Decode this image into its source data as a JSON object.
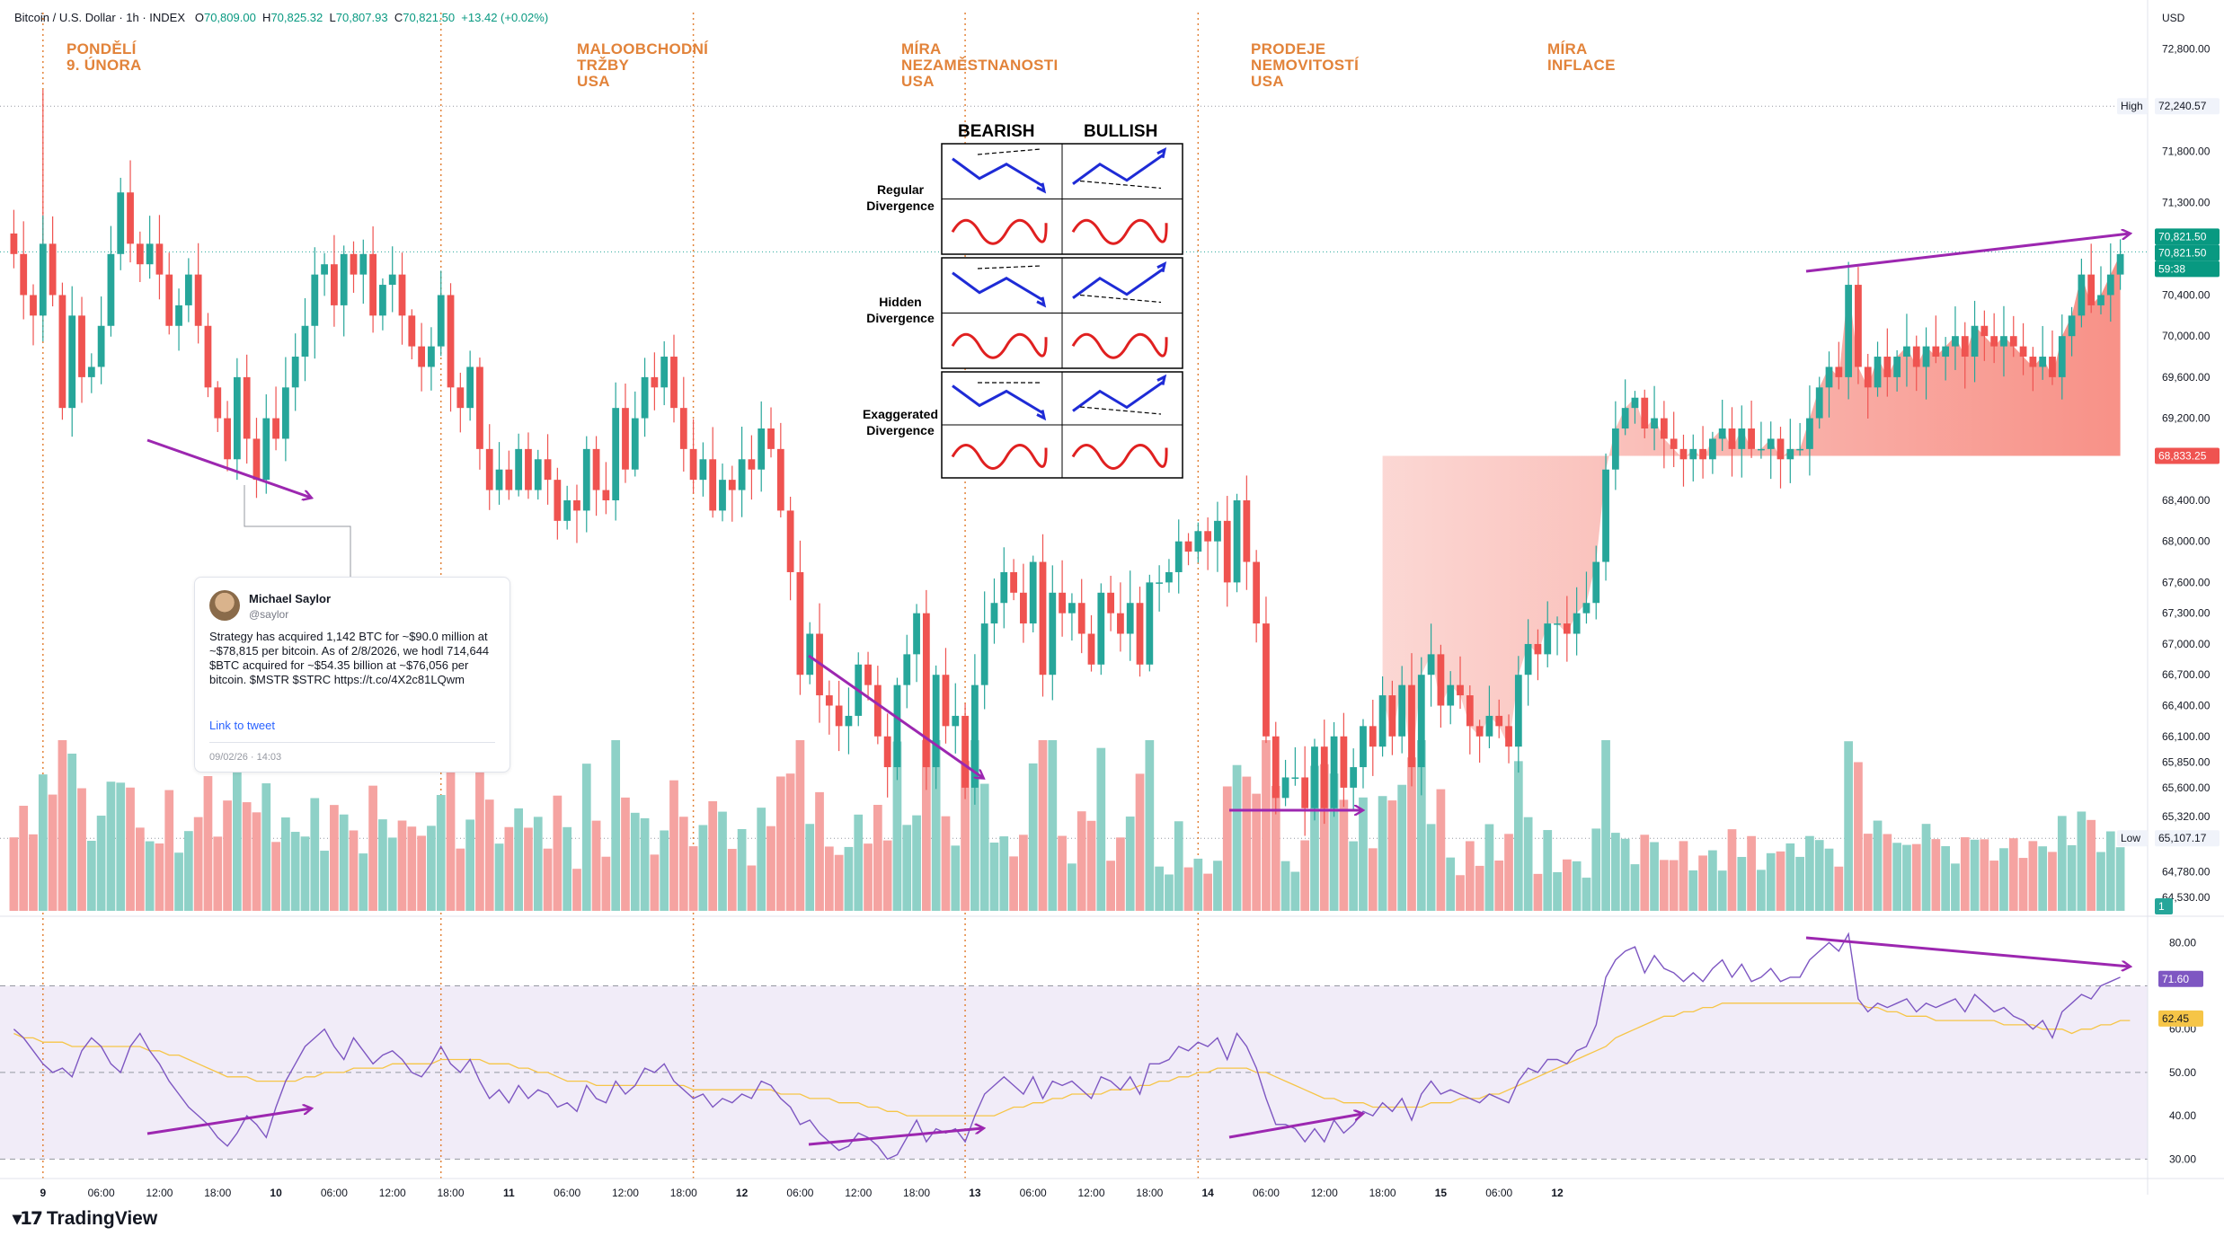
{
  "header": {
    "symbol": "Bitcoin / U.S. Dollar · 1h · INDEX",
    "open_label": "O",
    "open": "70,809.00",
    "high_label": "H",
    "high": "70,825.32",
    "low_label": "L",
    "low": "70,807.93",
    "close_label": "C",
    "close": "70,821.50",
    "change": "+13.42 (+0.02%)"
  },
  "events": [
    {
      "label": "PONDĚLÍ\n9. ÚNORA"
    },
    {
      "label": "MALOOBCHODNÍ\nTRŽBY\nUSA"
    },
    {
      "label": "MÍRA\nNEZAMĚSTNANOSTI\nUSA"
    },
    {
      "label": "PRODEJE\nNEMOVITOSTÍ\nUSA"
    },
    {
      "label": "MÍRA\nINFLACE"
    }
  ],
  "divergence_cheatsheet": {
    "bearish_label": "BEARISH",
    "bullish_label": "BULLISH",
    "rows": [
      "Regular\nDivergence",
      "Hidden\nDivergence",
      "Exaggerated\nDivergence"
    ]
  },
  "tweet": {
    "name": "Michael Saylor",
    "handle": "@saylor",
    "text": "Strategy has acquired 1,142 BTC for ~$90.0 million at ~$78,815 per bitcoin. As of 2/8/2026, we hodl 714,644 $BTC acquired for ~$54.35 billion at ~$76,056 per bitcoin. $MSTR $STRC https://t.co/4X2c81LQwm",
    "link_text": "Link to tweet",
    "date": "09/02/26 · 14:03"
  },
  "axis_labels": {
    "currency": "USD",
    "price_ticks": [
      "72,800.00",
      "71,800.00",
      "71,300.00",
      "70,400.00",
      "70,000.00",
      "69,600.00",
      "69,200.00",
      "68,400.00",
      "68,000.00",
      "67,600.00",
      "67,300.00",
      "67,000.00",
      "66,700.00",
      "66,400.00",
      "66,100.00",
      "65,850.00",
      "65,600.00",
      "65,320.00",
      "64,780.00",
      "64,530.00"
    ],
    "rsi_ticks": [
      "80.00",
      "60.00",
      "50.00",
      "40.00",
      "30.00"
    ],
    "time_ticks": [
      "9",
      "06:00",
      "12:00",
      "18:00",
      "10",
      "06:00",
      "12:00",
      "18:00",
      "11",
      "06:00",
      "12:00",
      "18:00",
      "12",
      "06:00",
      "12:00",
      "18:00",
      "13",
      "06:00",
      "12:00",
      "18:00",
      "14",
      "06:00",
      "12:00",
      "18:00",
      "15",
      "06:00",
      "12"
    ]
  },
  "price_badges": {
    "high_label": "High",
    "high_value": "72,240.57",
    "low_label": "Low",
    "low_value": "65,107.17",
    "last_price": "70,821.50",
    "last_price_2": "70,821.50",
    "countdown": "59:38",
    "range_low": "68,833.25",
    "volume_badge": "1",
    "rsi_value": "71.60",
    "rsi_ma_value": "62.45"
  },
  "branding": "TradingView",
  "chart_data": [
    {
      "type": "candlestick",
      "title": "Bitcoin / U.S. Dollar · 1h · INDEX",
      "x_start": "9 Feb 00:00",
      "x_step": "1h",
      "ylim": [
        64400,
        73100
      ],
      "colors": {
        "up": "#26a69a",
        "down": "#ef5350",
        "volume_up": "#8ed1c7",
        "volume_down": "#f5a3a1"
      },
      "closes": [
        70800,
        70400,
        70200,
        70900,
        70400,
        69300,
        70200,
        69600,
        69700,
        70100,
        70800,
        71400,
        70900,
        70700,
        70900,
        70600,
        70100,
        70300,
        70600,
        70100,
        69500,
        69200,
        68800,
        69600,
        69000,
        68600,
        69200,
        69000,
        69500,
        69800,
        70100,
        70600,
        70700,
        70300,
        70800,
        70600,
        70800,
        70200,
        70500,
        70600,
        70200,
        69900,
        69700,
        69900,
        70400,
        69500,
        69300,
        69700,
        68900,
        68500,
        68700,
        68500,
        68900,
        68500,
        68800,
        68600,
        68200,
        68400,
        68300,
        68900,
        68500,
        68400,
        69300,
        68700,
        69200,
        69600,
        69500,
        69800,
        69300,
        68900,
        68600,
        68800,
        68300,
        68600,
        68500,
        68800,
        68700,
        69100,
        68900,
        68300,
        67700,
        66700,
        67100,
        66500,
        66400,
        66200,
        66300,
        66800,
        66600,
        66100,
        65800,
        66600,
        66900,
        67300,
        65800,
        66700,
        66200,
        66300,
        65600,
        66600,
        67200,
        67400,
        67700,
        67500,
        67200,
        67800,
        66700,
        67500,
        67300,
        67400,
        67100,
        66800,
        67500,
        67300,
        67100,
        67400,
        66800,
        67600,
        67600,
        67700,
        68000,
        67900,
        68100,
        68000,
        68200,
        67600,
        68400,
        67800,
        67200,
        66100,
        65500,
        65700,
        65700,
        65400,
        66000,
        65400,
        66100,
        65600,
        65800,
        66200,
        66000,
        66500,
        66100,
        66600,
        65800,
        66700,
        66900,
        66400,
        66600,
        66500,
        66200,
        66100,
        66300,
        66200,
        66000,
        66700,
        67000,
        66900,
        67200,
        67200,
        67100,
        67300,
        67400,
        67800,
        68700,
        69100,
        69300,
        69400,
        69100,
        69200,
        69000,
        68900,
        68800,
        68900,
        68800,
        69000,
        69100,
        68900,
        69100,
        68900,
        68900,
        69000,
        68800,
        68900,
        68900,
        69200,
        69500,
        69700,
        69600,
        70500,
        69700,
        69500,
        69800,
        69600,
        69800,
        69900,
        69700,
        69900,
        69800,
        69900,
        70000,
        69800,
        70100,
        70000,
        69900,
        70000,
        69900,
        69800,
        69700,
        69800,
        69600,
        70000,
        70200,
        70600,
        70300,
        70400,
        70600,
        70800
      ]
    },
    {
      "type": "line",
      "title": "RSI",
      "ylim": [
        28,
        84
      ],
      "levels": [
        70,
        50,
        30
      ],
      "series": [
        {
          "values": [
            60,
            58,
            55,
            52,
            50,
            51,
            49,
            55,
            58,
            56,
            52,
            50,
            56,
            59,
            55,
            52,
            48,
            45,
            42,
            40,
            38,
            35,
            33,
            36,
            40,
            38,
            35,
            42,
            48,
            52,
            56,
            58,
            60,
            56,
            53,
            58,
            55,
            52,
            54,
            55,
            53,
            50,
            49,
            52,
            56,
            52,
            50,
            53,
            48,
            44,
            46,
            43,
            47,
            44,
            46,
            45,
            42,
            43,
            41,
            47,
            44,
            43,
            48,
            45,
            47,
            51,
            50,
            52,
            48,
            46,
            44,
            45,
            42,
            44,
            43,
            45,
            44,
            48,
            47,
            44,
            42,
            38,
            39,
            36,
            34,
            32,
            33,
            36,
            35,
            33,
            30,
            31,
            35,
            39,
            34,
            37,
            36,
            37,
            34,
            40,
            45,
            47,
            49,
            47,
            45,
            49,
            44,
            48,
            47,
            48,
            46,
            44,
            49,
            48,
            46,
            49,
            45,
            52,
            52,
            53,
            56,
            55,
            57,
            56,
            58,
            53,
            59,
            56,
            51,
            44,
            38,
            38,
            37,
            34,
            37,
            34,
            39,
            36,
            38,
            41,
            40,
            43,
            41,
            44,
            39,
            45,
            48,
            45,
            46,
            45,
            44,
            43,
            45,
            44,
            43,
            48,
            51,
            50,
            53,
            53,
            52,
            55,
            56,
            61,
            72,
            76,
            78,
            79,
            73,
            77,
            74,
            73,
            71,
            73,
            71,
            74,
            76,
            72,
            75,
            71,
            72,
            74,
            71,
            72,
            72,
            76,
            78,
            80,
            78,
            82,
            67,
            64,
            66,
            65,
            66,
            67,
            64,
            66,
            65,
            66,
            67,
            64,
            68,
            66,
            64,
            65,
            63,
            62,
            60,
            62,
            58,
            64,
            66,
            68,
            67,
            70,
            71,
            72
          ]
        },
        {
          "values": [
            59,
            58,
            58,
            57,
            57,
            57,
            56,
            56,
            56,
            56,
            56,
            56,
            56,
            56,
            55,
            55,
            54,
            54,
            53,
            52,
            51,
            50,
            49,
            49,
            49,
            48,
            48,
            48,
            48,
            48,
            49,
            49,
            50,
            50,
            50,
            51,
            51,
            51,
            51,
            52,
            52,
            52,
            52,
            52,
            53,
            53,
            53,
            53,
            53,
            52,
            52,
            52,
            51,
            51,
            50,
            50,
            49,
            48,
            48,
            48,
            47,
            47,
            47,
            47,
            47,
            47,
            47,
            47,
            47,
            47,
            46,
            46,
            46,
            46,
            46,
            46,
            46,
            46,
            46,
            45,
            45,
            45,
            44,
            44,
            44,
            43,
            43,
            43,
            42,
            42,
            41,
            41,
            40,
            40,
            40,
            40,
            40,
            40,
            40,
            40,
            40,
            40,
            41,
            42,
            42,
            43,
            43,
            44,
            44,
            45,
            45,
            45,
            45,
            46,
            46,
            46,
            47,
            47,
            48,
            48,
            49,
            49,
            50,
            50,
            51,
            51,
            51,
            51,
            50,
            50,
            49,
            48,
            47,
            46,
            45,
            44,
            44,
            43,
            43,
            43,
            42,
            42,
            42,
            42,
            42,
            42,
            43,
            43,
            43,
            44,
            44,
            44,
            45,
            45,
            46,
            47,
            48,
            49,
            50,
            51,
            52,
            53,
            54,
            55,
            56,
            58,
            59,
            60,
            61,
            62,
            63,
            63,
            64,
            64,
            65,
            65,
            66,
            66,
            66,
            66,
            66,
            66,
            66,
            66,
            66,
            66,
            66,
            66,
            66,
            66,
            66,
            65,
            65,
            64,
            64,
            63,
            63,
            63,
            62,
            62,
            62,
            62,
            62,
            62,
            62,
            61,
            61,
            61,
            61,
            60,
            60,
            60,
            59,
            60,
            60,
            61,
            61,
            62,
            62
          ]
        }
      ]
    }
  ]
}
